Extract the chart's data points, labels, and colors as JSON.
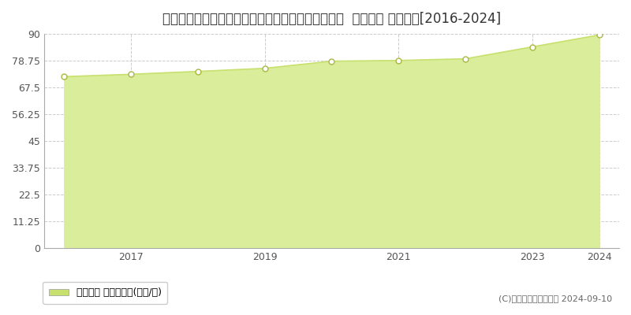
{
  "title": "埼玉県さいたま市緑区太田窪３丁目１１４０番３外  地価公示 地価推移[2016-2024]",
  "years": [
    2016,
    2017,
    2018,
    2019,
    2020,
    2021,
    2022,
    2023,
    2024
  ],
  "values": [
    72.0,
    73.0,
    74.2,
    75.5,
    78.5,
    78.8,
    79.5,
    84.5,
    89.5
  ],
  "ylim": [
    0,
    90
  ],
  "yticks": [
    0,
    11.25,
    22.5,
    33.75,
    45,
    56.25,
    67.5,
    78.75,
    90
  ],
  "xtick_positions": [
    2017,
    2019,
    2021,
    2023,
    2024
  ],
  "line_color": "#c8e06e",
  "fill_color": "#d9ed9a",
  "marker_facecolor": "#ffffff",
  "marker_edgecolor": "#a8b840",
  "bg_color": "#ffffff",
  "plot_bg_color": "#ffffff",
  "grid_color": "#cccccc",
  "legend_label": "地価公示 平均坪単価(万円/坪)",
  "legend_color": "#c8e06e",
  "copyright_text": "(C)土地価格ドットコム 2024-09-10",
  "title_fontsize": 12,
  "tick_fontsize": 9,
  "legend_fontsize": 9,
  "copyright_fontsize": 8
}
